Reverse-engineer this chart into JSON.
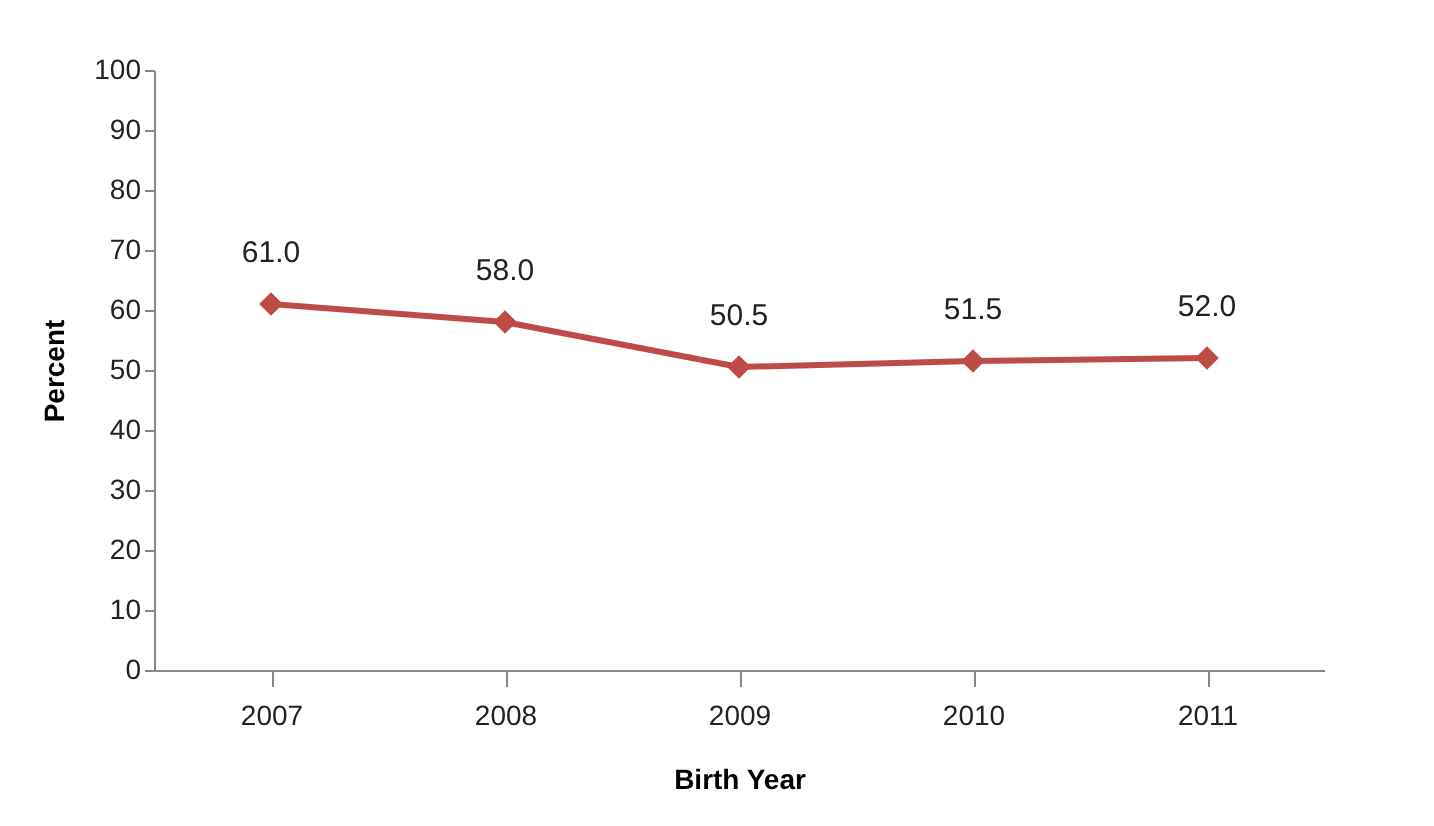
{
  "chart_data": {
    "type": "line",
    "xlabel": "Birth Year",
    "ylabel": "Percent",
    "categories": [
      "2007",
      "2008",
      "2009",
      "2010",
      "2011"
    ],
    "series": [
      {
        "color": "#be4b48",
        "values": [
          61.0,
          58.0,
          50.5,
          51.5,
          52.0
        ],
        "value_labels": [
          "61.0",
          "58.0",
          "50.5",
          "51.5",
          "52.0"
        ]
      }
    ],
    "ylim": [
      0,
      100
    ],
    "yticks": [
      0,
      10,
      20,
      30,
      40,
      50,
      60,
      70,
      80,
      90,
      100
    ],
    "grid": false,
    "legend": false,
    "marker": "diamond",
    "line_style": "solid"
  }
}
